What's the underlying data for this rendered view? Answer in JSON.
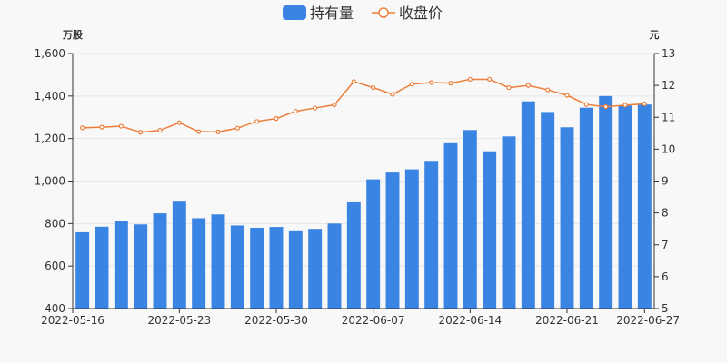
{
  "chart_data": {
    "type": "bar",
    "legend": {
      "placement": "top-center",
      "items": [
        {
          "name": "持有量",
          "color": "#3a84e4",
          "kind": "bar"
        },
        {
          "name": "收盘价",
          "color": "#ec7e3a",
          "kind": "line"
        }
      ]
    },
    "left_axis": {
      "unit": "万股",
      "min": 400,
      "max": 1600,
      "ticks": [
        "400",
        "600",
        "800",
        "1,000",
        "1,200",
        "1,400",
        "1,600"
      ]
    },
    "right_axis": {
      "unit": "元",
      "min": 5,
      "max": 13,
      "ticks": [
        "5",
        "6",
        "7",
        "8",
        "9",
        "10",
        "11",
        "12",
        "13"
      ]
    },
    "x_tick_labels": [
      "2022-05-16",
      "2022-05-23",
      "2022-05-30",
      "2022-06-07",
      "2022-06-14",
      "2022-06-21",
      "2022-06-27"
    ],
    "categories": [
      "2022-05-16",
      "2022-05-17",
      "2022-05-18",
      "2022-05-19",
      "2022-05-20",
      "2022-05-23",
      "2022-05-24",
      "2022-05-25",
      "2022-05-26",
      "2022-05-27",
      "2022-05-30",
      "2022-05-31",
      "2022-06-01",
      "2022-06-02",
      "2022-06-06",
      "2022-06-07",
      "2022-06-08",
      "2022-06-09",
      "2022-06-10",
      "2022-06-13",
      "2022-06-14",
      "2022-06-15",
      "2022-06-16",
      "2022-06-17",
      "2022-06-20",
      "2022-06-21",
      "2022-06-22",
      "2022-06-23",
      "2022-06-24",
      "2022-06-27"
    ],
    "series": [
      {
        "name": "持有量",
        "type": "bar",
        "axis": "left",
        "color": "#3a84e4",
        "values": [
          759,
          785,
          810,
          796,
          848,
          903,
          825,
          843,
          791,
          780,
          784,
          768,
          775,
          800,
          900,
          1008,
          1040,
          1055,
          1095,
          1178,
          1240,
          1140,
          1210,
          1375,
          1325,
          1253,
          1345,
          1400,
          1355,
          1360
        ]
      },
      {
        "name": "收盘价",
        "type": "line",
        "axis": "right",
        "color": "#ec7e3a",
        "values": [
          10.67,
          10.69,
          10.72,
          10.53,
          10.59,
          10.83,
          10.55,
          10.54,
          10.66,
          10.87,
          10.96,
          11.19,
          11.29,
          11.39,
          12.12,
          11.93,
          11.72,
          12.04,
          12.09,
          12.07,
          12.19,
          12.19,
          11.93,
          12.0,
          11.86,
          11.69,
          11.4,
          11.33,
          11.38,
          11.42
        ]
      }
    ]
  }
}
